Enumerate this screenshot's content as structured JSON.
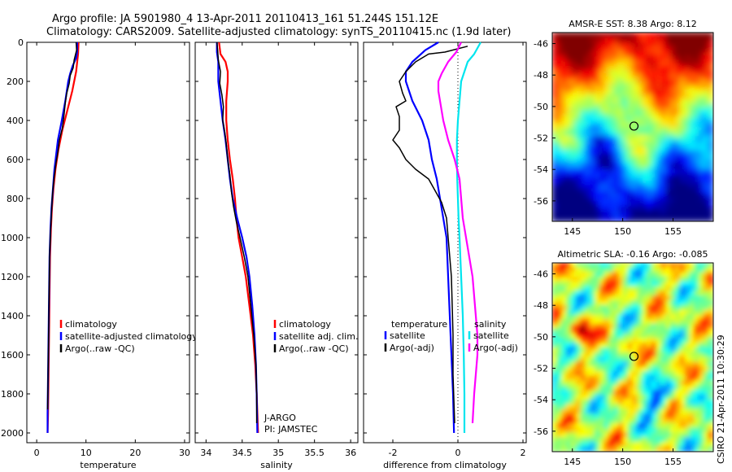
{
  "header": {
    "line1": "Argo profile: JA 5901980_4 13-Apr-2011 20110413_161 51.244S 151.12E",
    "line2": "Climatology: CARS2009. Satellite-adjusted climatology: synTS_20110415.nc (1.9d later)"
  },
  "side_stamp": "CSIRO 21-Apr-2011 10:30:29",
  "colors": {
    "climatology": "#ff0000",
    "satellite": "#0000ff",
    "argo": "#000000",
    "sat_salinity": "#00e5ee",
    "argo_adj_salinity": "#ff00ff"
  },
  "chart_data": [
    {
      "id": "temperature",
      "type": "line",
      "xlabel": "temperature",
      "xlim": [
        -2,
        31
      ],
      "ylim": [
        2050,
        0
      ],
      "xticks": [
        0,
        10,
        20,
        30
      ],
      "yticks": [
        0,
        200,
        400,
        600,
        800,
        1000,
        1200,
        1400,
        1600,
        1800,
        2000
      ],
      "legend": [
        "climatology",
        "satellite-adjusted climatology",
        "Argo(..raw -QC)"
      ],
      "series": [
        {
          "name": "climatology",
          "color": "#ff0000",
          "points": [
            [
              8.5,
              0
            ],
            [
              8.4,
              60
            ],
            [
              8.0,
              150
            ],
            [
              7.2,
              250
            ],
            [
              6.2,
              350
            ],
            [
              5.2,
              450
            ],
            [
              4.4,
              550
            ],
            [
              3.8,
              650
            ],
            [
              3.4,
              750
            ],
            [
              3.1,
              850
            ],
            [
              2.9,
              950
            ],
            [
              2.7,
              1100
            ],
            [
              2.6,
              1300
            ],
            [
              2.5,
              1500
            ],
            [
              2.4,
              1700
            ],
            [
              2.3,
              1900
            ],
            [
              2.2,
              2000
            ]
          ]
        },
        {
          "name": "satellite-adjusted climatology",
          "color": "#0000ff",
          "points": [
            [
              8.2,
              0
            ],
            [
              8.2,
              50
            ],
            [
              8.0,
              80
            ],
            [
              7.3,
              120
            ],
            [
              6.8,
              160
            ],
            [
              6.4,
              200
            ],
            [
              5.8,
              300
            ],
            [
              5.1,
              400
            ],
            [
              4.3,
              500
            ],
            [
              3.6,
              650
            ],
            [
              3.3,
              750
            ],
            [
              3.0,
              850
            ],
            [
              2.8,
              950
            ],
            [
              2.6,
              1100
            ],
            [
              2.5,
              1300
            ],
            [
              2.4,
              1500
            ],
            [
              2.3,
              1700
            ],
            [
              2.2,
              1900
            ],
            [
              2.2,
              2000
            ]
          ]
        },
        {
          "name": "Argo(..raw -QC)",
          "color": "#000000",
          "points": [
            [
              8.0,
              0
            ],
            [
              8.1,
              40
            ],
            [
              7.6,
              90
            ],
            [
              7.4,
              130
            ],
            [
              6.8,
              170
            ],
            [
              6.6,
              210
            ],
            [
              6.1,
              260
            ],
            [
              5.8,
              310
            ],
            [
              5.5,
              380
            ],
            [
              5.2,
              440
            ],
            [
              4.6,
              500
            ],
            [
              4.3,
              560
            ],
            [
              3.9,
              620
            ],
            [
              3.5,
              700
            ],
            [
              3.2,
              780
            ],
            [
              3.0,
              870
            ],
            [
              2.8,
              970
            ],
            [
              2.6,
              1100
            ],
            [
              2.5,
              1300
            ],
            [
              2.4,
              1500
            ],
            [
              2.3,
              1700
            ],
            [
              2.2,
              1880
            ]
          ]
        }
      ]
    },
    {
      "id": "salinity",
      "type": "line",
      "xlabel": "salinity",
      "xlim": [
        33.85,
        36.1
      ],
      "ylim": [
        2050,
        0
      ],
      "xticks": [
        34,
        34.5,
        35,
        35.5,
        36
      ],
      "xticklabels": [
        "34",
        "34.5",
        "35",
        "35.5",
        "36"
      ],
      "legend": [
        "climatology",
        "satellite adj. clim.",
        "Argo(..raw -QC)"
      ],
      "annotations": [
        "J-ARGO",
        "PI: JAMSTEC"
      ],
      "series": [
        {
          "name": "climatology",
          "color": "#ff0000",
          "points": [
            [
              34.18,
              0
            ],
            [
              34.2,
              60
            ],
            [
              34.27,
              100
            ],
            [
              34.3,
              150
            ],
            [
              34.3,
              200
            ],
            [
              34.28,
              300
            ],
            [
              34.28,
              400
            ],
            [
              34.3,
              500
            ],
            [
              34.33,
              600
            ],
            [
              34.37,
              700
            ],
            [
              34.4,
              800
            ],
            [
              34.42,
              900
            ],
            [
              34.45,
              1000
            ],
            [
              34.5,
              1100
            ],
            [
              34.55,
              1200
            ],
            [
              34.6,
              1350
            ],
            [
              34.65,
              1500
            ],
            [
              34.68,
              1650
            ],
            [
              34.7,
              1800
            ],
            [
              34.72,
              2000
            ]
          ]
        },
        {
          "name": "satellite adj. clim.",
          "color": "#0000ff",
          "points": [
            [
              34.15,
              0
            ],
            [
              34.15,
              50
            ],
            [
              34.17,
              100
            ],
            [
              34.17,
              200
            ],
            [
              34.2,
              300
            ],
            [
              34.23,
              400
            ],
            [
              34.27,
              500
            ],
            [
              34.3,
              600
            ],
            [
              34.33,
              700
            ],
            [
              34.37,
              800
            ],
            [
              34.43,
              900
            ],
            [
              34.5,
              1000
            ],
            [
              34.56,
              1100
            ],
            [
              34.6,
              1200
            ],
            [
              34.64,
              1350
            ],
            [
              34.67,
              1500
            ],
            [
              34.69,
              1650
            ],
            [
              34.7,
              1800
            ],
            [
              34.71,
              2000
            ]
          ]
        },
        {
          "name": "Argo(..raw -QC)",
          "color": "#000000",
          "points": [
            [
              34.15,
              0
            ],
            [
              34.16,
              40
            ],
            [
              34.17,
              90
            ],
            [
              34.2,
              150
            ],
            [
              34.19,
              210
            ],
            [
              34.22,
              270
            ],
            [
              34.24,
              330
            ],
            [
              34.23,
              400
            ],
            [
              34.26,
              460
            ],
            [
              34.28,
              520
            ],
            [
              34.3,
              600
            ],
            [
              34.33,
              680
            ],
            [
              34.35,
              760
            ],
            [
              34.38,
              840
            ],
            [
              34.42,
              920
            ],
            [
              34.47,
              1000
            ],
            [
              34.53,
              1100
            ],
            [
              34.58,
              1200
            ],
            [
              34.62,
              1350
            ],
            [
              34.66,
              1500
            ],
            [
              34.69,
              1650
            ],
            [
              34.7,
              1800
            ],
            [
              34.7,
              1950
            ]
          ]
        }
      ]
    },
    {
      "id": "difference",
      "type": "line",
      "xlabel": "difference from climatology",
      "xlim": [
        -2.9,
        2.1
      ],
      "ylim": [
        2050,
        0
      ],
      "xticks": [
        -2,
        0,
        2
      ],
      "legend_headers": [
        "temperature",
        "salinity"
      ],
      "legend": [
        "satellite",
        "Argo(-adj)",
        "satellite",
        "Argo(-adj)"
      ],
      "series": [
        {
          "name": "satellite",
          "group": "temperature",
          "color": "#0000ff",
          "points": [
            [
              -0.6,
              0
            ],
            [
              -1.0,
              40
            ],
            [
              -1.4,
              100
            ],
            [
              -1.6,
              150
            ],
            [
              -1.6,
              200
            ],
            [
              -1.4,
              300
            ],
            [
              -1.1,
              400
            ],
            [
              -0.9,
              500
            ],
            [
              -0.8,
              600
            ],
            [
              -0.65,
              700
            ],
            [
              -0.55,
              800
            ],
            [
              -0.45,
              900
            ],
            [
              -0.35,
              1000
            ],
            [
              -0.3,
              1200
            ],
            [
              -0.25,
              1400
            ],
            [
              -0.2,
              1600
            ],
            [
              -0.15,
              1800
            ],
            [
              -0.12,
              2000
            ]
          ]
        },
        {
          "name": "Argo(-adj)",
          "group": "temperature",
          "color": "#000000",
          "points": [
            [
              0.3,
              20
            ],
            [
              -0.4,
              50
            ],
            [
              -0.9,
              60
            ],
            [
              -1.3,
              100
            ],
            [
              -1.6,
              150
            ],
            [
              -1.8,
              200
            ],
            [
              -1.7,
              260
            ],
            [
              -1.6,
              300
            ],
            [
              -1.9,
              330
            ],
            [
              -1.8,
              380
            ],
            [
              -1.8,
              450
            ],
            [
              -2.0,
              500
            ],
            [
              -1.8,
              540
            ],
            [
              -1.6,
              600
            ],
            [
              -1.3,
              650
            ],
            [
              -0.9,
              700
            ],
            [
              -0.7,
              760
            ],
            [
              -0.5,
              820
            ],
            [
              -0.35,
              900
            ],
            [
              -0.3,
              1000
            ],
            [
              -0.2,
              1200
            ],
            [
              -0.15,
              1500
            ],
            [
              -0.15,
              1700
            ],
            [
              -0.1,
              1950
            ]
          ]
        },
        {
          "name": "satellite",
          "group": "salinity",
          "color": "#00e5ee",
          "points": [
            [
              0.7,
              0
            ],
            [
              0.5,
              60
            ],
            [
              0.3,
              100
            ],
            [
              0.2,
              150
            ],
            [
              0.1,
              200
            ],
            [
              0.05,
              300
            ],
            [
              0.0,
              400
            ],
            [
              -0.03,
              500
            ],
            [
              -0.03,
              600
            ],
            [
              -0.02,
              700
            ],
            [
              0.0,
              800
            ],
            [
              0.02,
              900
            ],
            [
              0.05,
              1000
            ],
            [
              0.1,
              1200
            ],
            [
              0.15,
              1400
            ],
            [
              0.18,
              1600
            ],
            [
              0.2,
              1800
            ],
            [
              0.2,
              2000
            ]
          ]
        },
        {
          "name": "Argo(-adj)",
          "group": "salinity",
          "color": "#ff00ff",
          "points": [
            [
              0.1,
              0
            ],
            [
              -0.05,
              50
            ],
            [
              -0.3,
              100
            ],
            [
              -0.5,
              160
            ],
            [
              -0.6,
              200
            ],
            [
              -0.6,
              250
            ],
            [
              -0.55,
              300
            ],
            [
              -0.45,
              400
            ],
            [
              -0.3,
              500
            ],
            [
              -0.1,
              600
            ],
            [
              0.05,
              700
            ],
            [
              0.1,
              800
            ],
            [
              0.15,
              900
            ],
            [
              0.25,
              1000
            ],
            [
              0.35,
              1100
            ],
            [
              0.45,
              1200
            ],
            [
              0.5,
              1300
            ],
            [
              0.55,
              1400
            ],
            [
              0.6,
              1500
            ],
            [
              0.6,
              1600
            ],
            [
              0.55,
              1700
            ],
            [
              0.5,
              1800
            ],
            [
              0.45,
              1950
            ]
          ]
        }
      ]
    },
    {
      "id": "sst_map",
      "type": "heatmap",
      "title": "AMSR-E SST: 8.38 Argo: 8.12",
      "xlim": [
        143,
        159
      ],
      "ylim": [
        -57.3,
        -45.3
      ],
      "xticks": [
        145,
        150,
        155
      ],
      "yticks": [
        -46,
        -48,
        -50,
        -52,
        -54,
        -56
      ],
      "marker": {
        "lon": 151.12,
        "lat": -51.244
      }
    },
    {
      "id": "sla_map",
      "type": "heatmap",
      "title": "Altimetric SLA: -0.16 Argo: -0.085",
      "xlim": [
        143,
        159
      ],
      "ylim": [
        -57.3,
        -45.3
      ],
      "xticks": [
        145,
        150,
        155
      ],
      "yticks": [
        -46,
        -48,
        -50,
        -52,
        -54,
        -56
      ],
      "marker": {
        "lon": 151.12,
        "lat": -51.244
      }
    }
  ]
}
